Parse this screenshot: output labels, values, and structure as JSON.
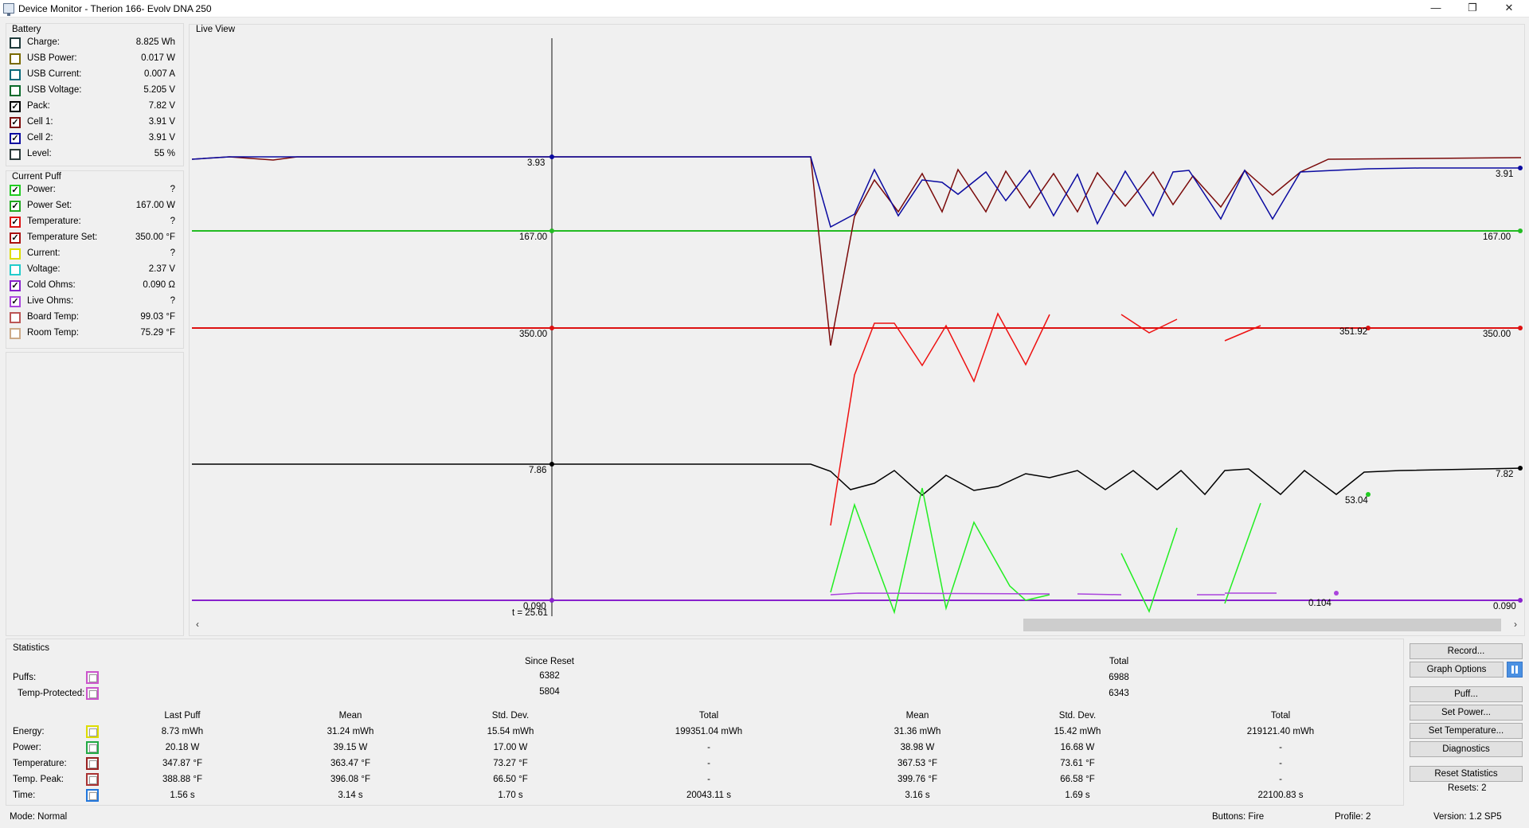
{
  "window": {
    "title": "Device Monitor - Therion 166- Evolv DNA 250",
    "minimize": "—",
    "maximize": "❐",
    "close": "✕"
  },
  "battery": {
    "title": "Battery",
    "items": [
      {
        "label": "Charge:",
        "value": "8.825 Wh",
        "color": "#1f3b3b",
        "checked": false
      },
      {
        "label": "USB Power:",
        "value": "0.017 W",
        "color": "#7a6a00",
        "checked": false
      },
      {
        "label": "USB Current:",
        "value": "0.007 A",
        "color": "#0a6a7a",
        "checked": false
      },
      {
        "label": "USB Voltage:",
        "value": "5.205 V",
        "color": "#0a6a2a",
        "checked": false
      },
      {
        "label": "Pack:",
        "value": "7.82 V",
        "color": "#000000",
        "checked": true
      },
      {
        "label": "Cell 1:",
        "value": "3.91 V",
        "color": "#7a0a0a",
        "checked": true
      },
      {
        "label": "Cell 2:",
        "value": "3.91 V",
        "color": "#0a0aa0",
        "checked": true
      },
      {
        "label": "Level:",
        "value": "55 %",
        "color": "#2a3a3a",
        "checked": false
      }
    ]
  },
  "current_puff": {
    "title": "Current Puff",
    "items": [
      {
        "label": "Power:",
        "value": "?",
        "color": "#22cc22",
        "checked": true
      },
      {
        "label": "Power Set:",
        "value": "167.00 W",
        "color": "#22aa22",
        "checked": true
      },
      {
        "label": "Temperature:",
        "value": "?",
        "color": "#dd1111",
        "checked": true
      },
      {
        "label": "Temperature Set:",
        "value": "350.00 °F",
        "color": "#aa1111",
        "checked": true
      },
      {
        "label": "Current:",
        "value": "?",
        "color": "#dddd00",
        "checked": false
      },
      {
        "label": "Voltage:",
        "value": "2.37 V",
        "color": "#22cccc",
        "checked": false
      },
      {
        "label": "Cold Ohms:",
        "value": "0.090 Ω",
        "color": "#8822cc",
        "checked": true
      },
      {
        "label": "Live Ohms:",
        "value": "?",
        "color": "#aa44dd",
        "checked": true
      },
      {
        "label": "Board Temp:",
        "value": "99.03 °F",
        "color": "#bb5555",
        "checked": false
      },
      {
        "label": "Room Temp:",
        "value": "75.29 °F",
        "color": "#ccaa88",
        "checked": false
      }
    ]
  },
  "live_view": {
    "title": "Live View",
    "cursor_label": "t = 25.61",
    "labels_left": [
      "3.93",
      "167.00",
      "350.00",
      "7.86",
      "0.090"
    ],
    "labels_right": [
      "3.91",
      "167.00",
      "350.00",
      "7.82",
      "0.090"
    ],
    "labels_mid": [
      "351.92",
      "53.04",
      "0.104"
    ],
    "scroll_left": "‹",
    "scroll_right": "›"
  },
  "statistics": {
    "title": "Statistics",
    "since_reset": "Since Reset",
    "total": "Total",
    "puffs_label": "Puffs:",
    "temp_protected_label": "Temp-Protected:",
    "puffs_since": "6382",
    "puffs_total": "6988",
    "tp_since": "5804",
    "tp_total": "6343",
    "headers": [
      "Last Puff",
      "Mean",
      "Std. Dev.",
      "Total",
      "Mean",
      "Std. Dev.",
      "Total"
    ],
    "rows": [
      {
        "label": "Energy:",
        "color": "#dddd00",
        "values": [
          "8.73 mWh",
          "31.24 mWh",
          "15.54 mWh",
          "199351.04 mWh",
          "31.36 mWh",
          "15.42 mWh",
          "219121.40 mWh"
        ]
      },
      {
        "label": "Power:",
        "color": "#22aa44",
        "values": [
          "20.18 W",
          "39.15 W",
          "17.00 W",
          "-",
          "38.98 W",
          "16.68 W",
          "-"
        ]
      },
      {
        "label": "Temperature:",
        "color": "#992222",
        "values": [
          "347.87 °F",
          "363.47 °F",
          "73.27 °F",
          "-",
          "367.53 °F",
          "73.61 °F",
          "-"
        ]
      },
      {
        "label": "Temp. Peak:",
        "color": "#aa3333",
        "values": [
          "388.88 °F",
          "396.08 °F",
          "66.50 °F",
          "-",
          "399.76 °F",
          "66.58 °F",
          "-"
        ]
      },
      {
        "label": "Time:",
        "color": "#2277dd",
        "values": [
          "1.56 s",
          "3.14 s",
          "1.70 s",
          "20043.11 s",
          "3.16 s",
          "1.69 s",
          "22100.83 s"
        ]
      }
    ]
  },
  "buttons": {
    "record": "Record...",
    "graph_options": "Graph Options",
    "puff": "Puff...",
    "set_power": "Set Power...",
    "set_temperature": "Set Temperature...",
    "diagnostics": "Diagnostics",
    "reset_statistics": "Reset Statistics",
    "resets": "Resets: 2"
  },
  "status": {
    "mode": "Mode: Normal",
    "buttons": "Buttons: Fire",
    "profile": "Profile: 2",
    "version": "Version: 1.2 SP5"
  }
}
